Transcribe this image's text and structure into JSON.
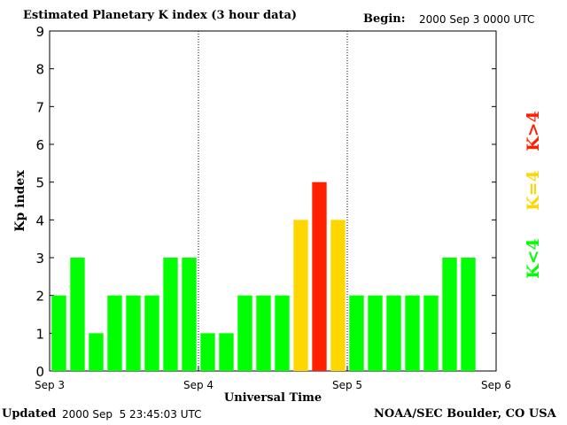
{
  "header": {
    "title": "Estimated Planetary K index (3 hour data)",
    "begin_label": "Begin:",
    "begin_value": "2000 Sep 3 0000 UTC"
  },
  "footer": {
    "updated_label": "Updated",
    "updated_value": "2000 Sep  5 23:45:03 UTC",
    "credit": "NOAA/SEC Boulder, CO USA"
  },
  "legend": {
    "low": "K<4",
    "mid": "K=4",
    "high": "K>4"
  },
  "colors": {
    "low": "#00ff00",
    "mid": "#ffd700",
    "high": "#ff2000",
    "axis": "#000000",
    "divider": "#000000"
  },
  "chart_data": {
    "type": "bar",
    "title": "Estimated Planetary K index (3 hour data)",
    "xlabel": "Universal Time",
    "ylabel": "Kp index",
    "ylim": [
      0,
      9
    ],
    "yticks": [
      0,
      1,
      2,
      3,
      4,
      5,
      6,
      7,
      8,
      9
    ],
    "xticks": [
      "Sep 3",
      "Sep 4",
      "Sep 5",
      "Sep 6"
    ],
    "day_dividers": "dotted",
    "legend_placement": "right",
    "values": [
      2,
      3,
      1,
      2,
      2,
      2,
      3,
      3,
      1,
      1,
      2,
      2,
      2,
      4,
      5,
      4,
      2,
      2,
      2,
      2,
      2,
      3,
      3
    ],
    "color_rule": {
      "low": "K<4",
      "mid": "K=4",
      "high": "K>4"
    }
  }
}
